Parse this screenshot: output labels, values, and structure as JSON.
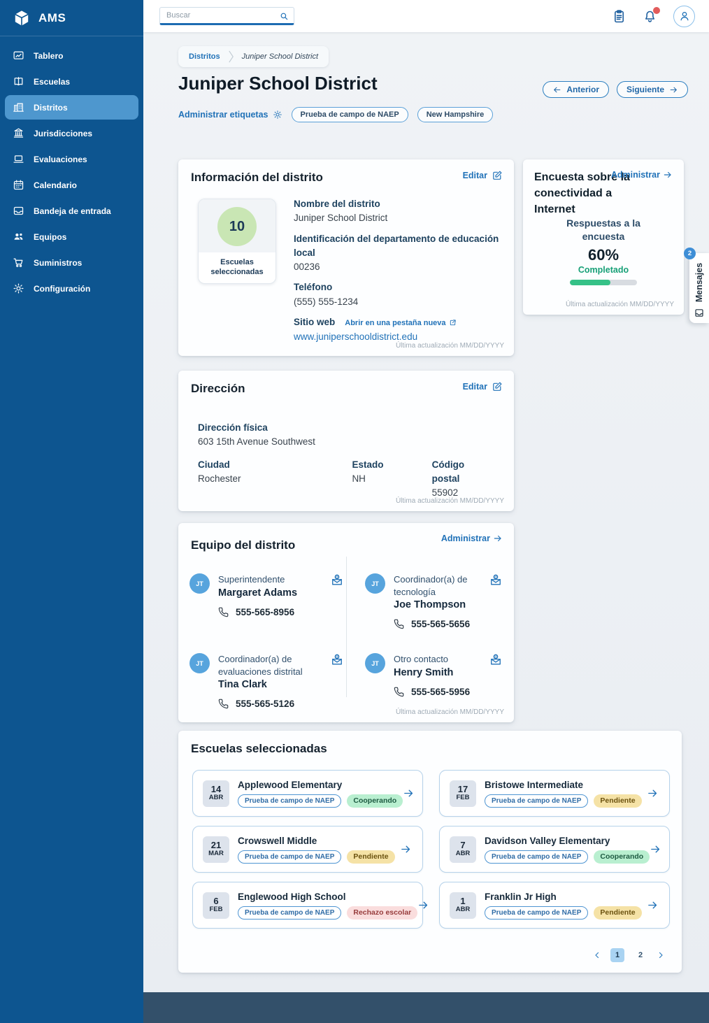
{
  "app": {
    "name": "AMS"
  },
  "topbar": {
    "search_placeholder": "Buscar"
  },
  "sidebar": {
    "items": [
      {
        "label": "Tablero"
      },
      {
        "label": "Escuelas"
      },
      {
        "label": "Distritos",
        "active": true
      },
      {
        "label": "Jurisdicciones"
      },
      {
        "label": "Evaluaciones"
      },
      {
        "label": "Calendario"
      },
      {
        "label": "Bandeja de entrada"
      },
      {
        "label": "Equipos"
      },
      {
        "label": "Suministros"
      },
      {
        "label": "Configuración"
      }
    ]
  },
  "breadcrumb": {
    "parent": "Distritos",
    "current": "Juniper School District"
  },
  "page": {
    "title": "Juniper School District",
    "prev_label": "Anterior",
    "next_label": "Siguiente",
    "manage_tags_label": "Administrar etiquetas",
    "tags": [
      "Prueba de campo de NAEP",
      "New Hampshire"
    ]
  },
  "district_info": {
    "title": "Información del distrito",
    "edit_label": "Editar",
    "schools_count": "10",
    "schools_count_label": "Escuelas seleccionadas",
    "name_label": "Nombre del distrito",
    "name_value": "Juniper School District",
    "lea_label": "Identificación del departamento de educación local",
    "lea_value": "00236",
    "phone_label": "Teléfono",
    "phone_value": "(555) 555-1234",
    "website_label": "Sitio web",
    "open_new_tab_label": "Abrir en una pestaña nueva",
    "website_value": "www.juniperschooldistrict.edu",
    "last_updated": "Última actualización MM/DD/YYYY"
  },
  "survey": {
    "title": "Encuesta sobre la conectividad a Internet",
    "manage_label": "Administrar",
    "responses_label": "Respuestas a la encuesta",
    "percent_label": "60%",
    "percent_value": 60,
    "status_label": "Completado",
    "last_updated": "Última actualización MM/DD/YYYY",
    "bar_color": "#35c187",
    "track_color": "#d8dce1"
  },
  "address": {
    "title": "Dirección",
    "edit_label": "Editar",
    "physical_label": "Dirección física",
    "physical_value": "603 15th Avenue Southwest",
    "city_label": "Ciudad",
    "city_value": "Rochester",
    "state_label": "Estado",
    "state_value": "NH",
    "zip_label": "Código postal",
    "zip_value": "55902",
    "last_updated": "Última actualización MM/DD/YYYY"
  },
  "team": {
    "title": "Equipo del distrito",
    "manage_label": "Administrar",
    "last_updated": "Última actualización MM/DD/YYYY",
    "members": [
      {
        "initials": "JT",
        "role": "Superintendente",
        "name": "Margaret Adams",
        "phone": "555-565-8956"
      },
      {
        "initials": "JT",
        "role": "Coordinador(a) de tecnología",
        "name": "Joe Thompson",
        "phone": "555-565-5656"
      },
      {
        "initials": "JT",
        "role": "Coordinador(a) de evaluaciones distrital",
        "name": "Tina Clark",
        "phone": "555-565-5126"
      },
      {
        "initials": "JT",
        "role": "Otro contacto",
        "name": "Henry Smith",
        "phone": "555-565-5956"
      }
    ]
  },
  "schools": {
    "title": "Escuelas seleccionadas",
    "naep_tag": "Prueba de campo de NAEP",
    "items": [
      {
        "day": "14",
        "month": "ABR",
        "name": "Applewood Elementary",
        "status": "Cooperando",
        "status_type": "green"
      },
      {
        "day": "17",
        "month": "FEB",
        "name": "Bristowe Intermediate",
        "status": "Pendiente",
        "status_type": "yellow"
      },
      {
        "day": "21",
        "month": "MAR",
        "name": "Crowswell Middle",
        "status": "Pendiente",
        "status_type": "yellow"
      },
      {
        "day": "7",
        "month": "ABR",
        "name": "Davidson Valley Elementary",
        "status": "Cooperando",
        "status_type": "green"
      },
      {
        "day": "6",
        "month": "FEB",
        "name": "Englewood High School",
        "status": "Rechazo escolar",
        "status_type": "red"
      },
      {
        "day": "1",
        "month": "ABR",
        "name": "Franklin Jr High",
        "status": "Pendiente",
        "status_type": "yellow"
      }
    ],
    "pagination": {
      "pages": [
        "1",
        "2"
      ],
      "current": "1"
    }
  },
  "messages": {
    "label": "Mensajes",
    "badge": "2"
  },
  "colors": {
    "sidebar": "#0d5590",
    "sidebar_active": "#4e97ce",
    "accent_blue": "#2172b8",
    "footer": "#33506a",
    "status_green_bg": "#b9efd0",
    "status_yellow_bg": "#f5e2a6",
    "status_red_bg": "#fadddd",
    "count_circle": "#c9e6b4"
  }
}
